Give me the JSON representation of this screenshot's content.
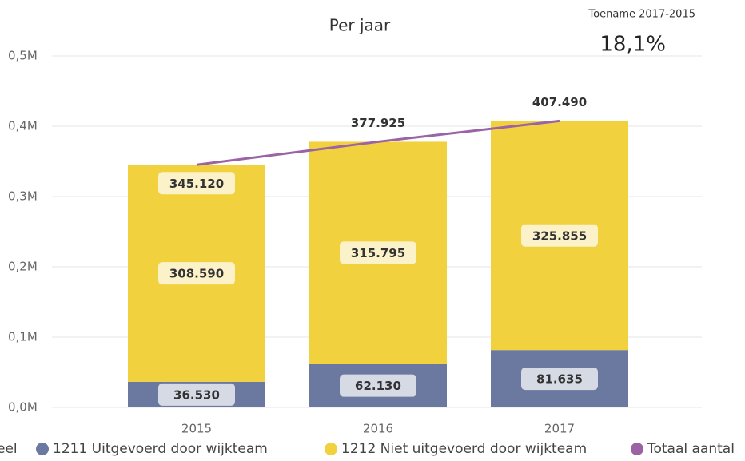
{
  "chart_data": {
    "type": "stacked-bar-line",
    "title": "Per jaar",
    "categories": [
      "2015",
      "2016",
      "2017"
    ],
    "series": [
      {
        "name": "1211 Uitgevoerd door wijkteam",
        "color": "#6b79a0",
        "values": [
          36530,
          62130,
          81635
        ],
        "value_labels": [
          "36.530",
          "62.130",
          "81.635"
        ]
      },
      {
        "name": "1212 Niet uitgevoerd door wijkteam",
        "color": "#f2d13e",
        "values": [
          308590,
          315795,
          325855
        ],
        "value_labels": [
          "308.590",
          "315.795",
          "325.855"
        ]
      },
      {
        "name": "Totaal aantal",
        "color": "#9b63a6",
        "type": "line",
        "values": [
          345120,
          377925,
          407490
        ],
        "value_labels": [
          "345.120",
          "377.925",
          "407.490"
        ]
      }
    ],
    "legend_title": "eel",
    "ylim": [
      0,
      500000
    ],
    "yticks": [
      {
        "value": 0,
        "label": "0,0M"
      },
      {
        "value": 100000,
        "label": "0,1M"
      },
      {
        "value": 200000,
        "label": "0,2M"
      },
      {
        "value": 300000,
        "label": "0,3M"
      },
      {
        "value": 400000,
        "label": "0,4M"
      },
      {
        "value": 500000,
        "label": "0,5M"
      }
    ],
    "grid": true
  },
  "kpi": {
    "title": "Toename 2017-2015",
    "value": "18,1%"
  }
}
